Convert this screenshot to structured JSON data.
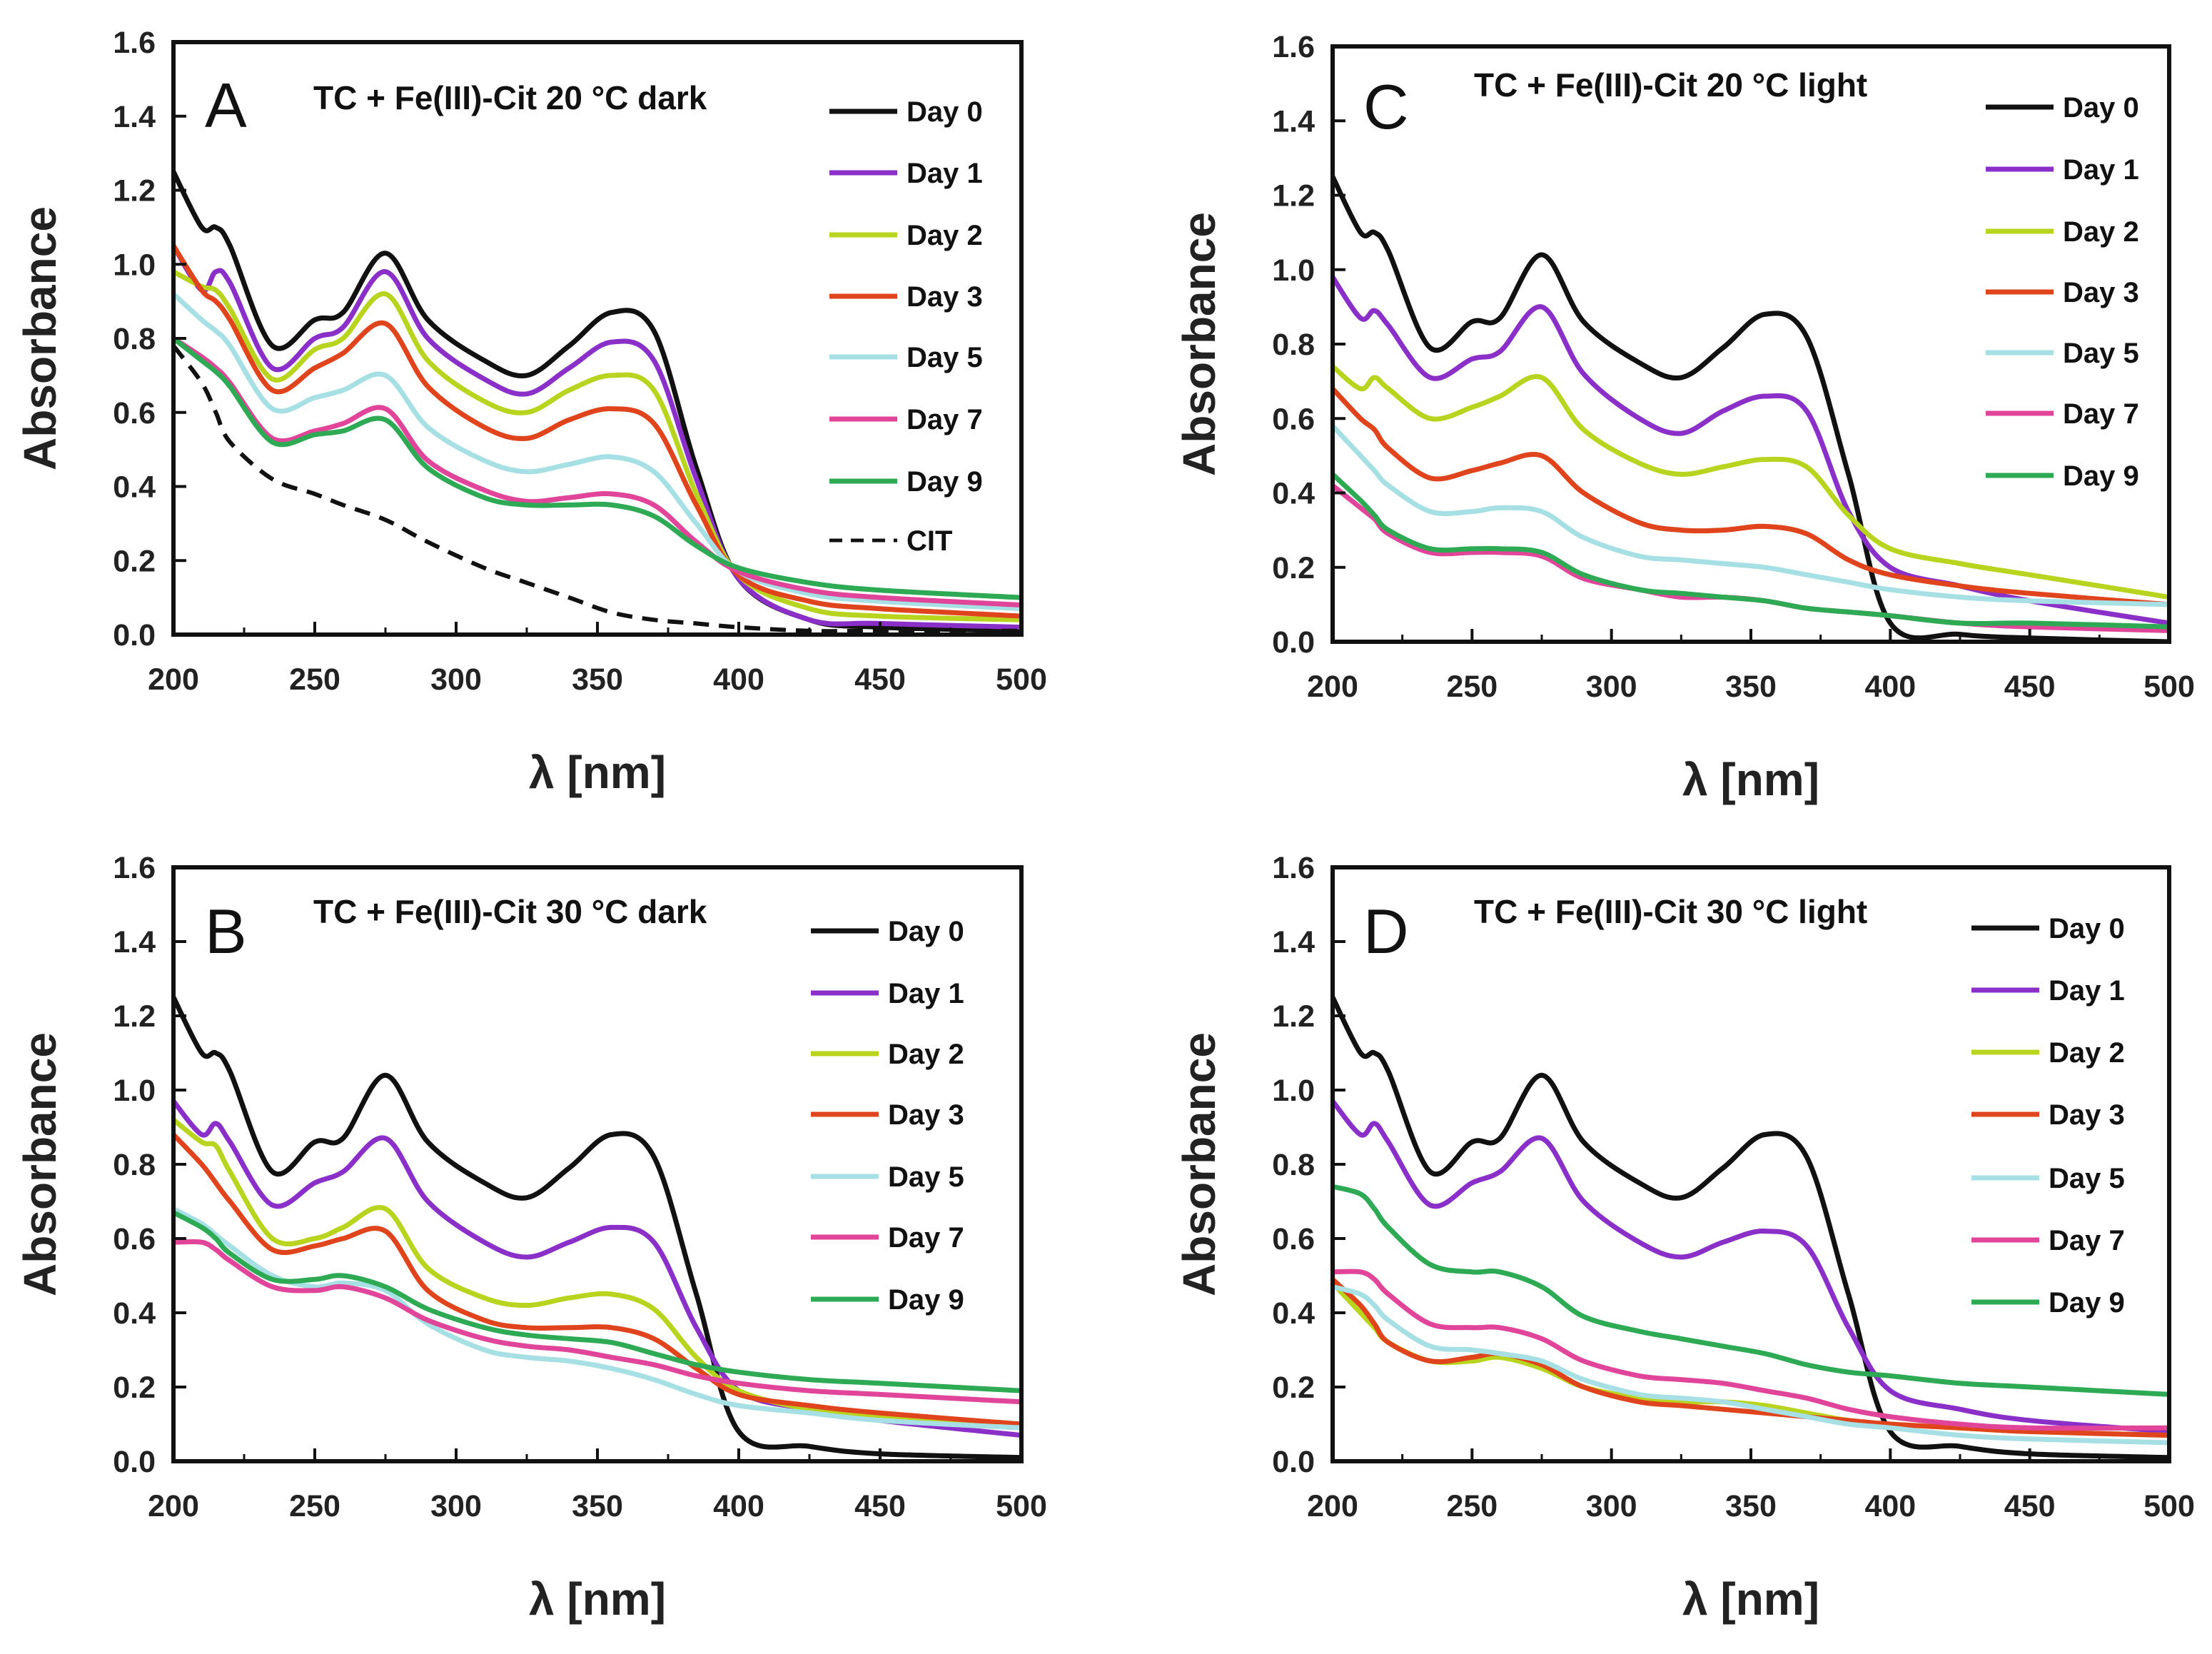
{
  "chart_data": [
    {
      "type": "line",
      "panel_letter": "A",
      "title": "TC + Fe(III)-Cit  20 °C dark",
      "xlabel": "λ [nm]",
      "ylabel": "Absorbance",
      "xlim": [
        200,
        500
      ],
      "ylim": [
        0,
        1.6
      ],
      "xticks": [
        200,
        250,
        300,
        350,
        400,
        450,
        500
      ],
      "yticks": [
        "0.0",
        "0.2",
        "0.4",
        "0.6",
        "0.8",
        "1.0",
        "1.2",
        "1.4",
        "1.6"
      ],
      "legend_position": "top-right",
      "x": [
        200,
        210,
        215,
        220,
        235,
        250,
        260,
        275,
        290,
        310,
        325,
        340,
        355,
        370,
        385,
        400,
        425,
        450,
        500
      ],
      "series": [
        {
          "name": "Day 0",
          "color": "#111111",
          "dash": false,
          "values": [
            1.25,
            1.1,
            1.1,
            1.05,
            0.78,
            0.85,
            0.87,
            1.03,
            0.85,
            0.74,
            0.7,
            0.78,
            0.87,
            0.82,
            0.45,
            0.15,
            0.04,
            0.02,
            0.01
          ]
        },
        {
          "name": "Day 1",
          "color": "#8b2fc9",
          "dash": false,
          "values": [
            1.05,
            0.93,
            0.98,
            0.95,
            0.72,
            0.8,
            0.83,
            0.98,
            0.8,
            0.69,
            0.65,
            0.72,
            0.79,
            0.74,
            0.42,
            0.15,
            0.04,
            0.03,
            0.02
          ]
        },
        {
          "name": "Day 2",
          "color": "#b8d41e",
          "dash": false,
          "values": [
            0.98,
            0.94,
            0.93,
            0.88,
            0.69,
            0.77,
            0.8,
            0.92,
            0.74,
            0.63,
            0.6,
            0.66,
            0.7,
            0.66,
            0.38,
            0.16,
            0.07,
            0.05,
            0.04
          ]
        },
        {
          "name": "Day 3",
          "color": "#e0441c",
          "dash": false,
          "values": [
            1.05,
            0.93,
            0.9,
            0.85,
            0.66,
            0.72,
            0.76,
            0.84,
            0.67,
            0.56,
            0.53,
            0.58,
            0.61,
            0.57,
            0.35,
            0.16,
            0.09,
            0.07,
            0.05
          ]
        },
        {
          "name": "Day 5",
          "color": "#a6e0e4",
          "dash": false,
          "values": [
            0.92,
            0.85,
            0.82,
            0.78,
            0.61,
            0.64,
            0.66,
            0.7,
            0.56,
            0.47,
            0.44,
            0.46,
            0.48,
            0.44,
            0.3,
            0.17,
            0.11,
            0.09,
            0.07
          ]
        },
        {
          "name": "Day 7",
          "color": "#e0459a",
          "dash": false,
          "values": [
            0.8,
            0.75,
            0.72,
            0.68,
            0.53,
            0.55,
            0.57,
            0.61,
            0.47,
            0.39,
            0.36,
            0.37,
            0.38,
            0.35,
            0.25,
            0.17,
            0.12,
            0.1,
            0.08
          ]
        },
        {
          "name": "Day 9",
          "color": "#2eaa55",
          "dash": false,
          "values": [
            0.8,
            0.74,
            0.71,
            0.67,
            0.52,
            0.54,
            0.55,
            0.58,
            0.45,
            0.37,
            0.35,
            0.35,
            0.35,
            0.32,
            0.24,
            0.18,
            0.14,
            0.12,
            0.1
          ]
        },
        {
          "name": "CIT",
          "color": "#111111",
          "dash": true,
          "values": [
            0.78,
            0.68,
            0.6,
            0.52,
            0.42,
            0.38,
            0.35,
            0.31,
            0.25,
            0.18,
            0.14,
            0.1,
            0.06,
            0.04,
            0.03,
            0.02,
            0.01,
            0.01,
            0.01
          ]
        }
      ]
    },
    {
      "type": "line",
      "panel_letter": "C",
      "title": "TC + Fe(III)-Cit  20 °C light",
      "xlabel": "λ [nm]",
      "ylabel": "Absorbance",
      "xlim": [
        200,
        500
      ],
      "ylim": [
        0,
        1.6
      ],
      "xticks": [
        200,
        250,
        300,
        350,
        400,
        450,
        500
      ],
      "yticks": [
        "0.0",
        "0.2",
        "0.4",
        "0.6",
        "0.8",
        "1.0",
        "1.2",
        "1.4",
        "1.6"
      ],
      "legend_position": "top-right",
      "x": [
        200,
        210,
        215,
        220,
        235,
        250,
        260,
        275,
        290,
        310,
        325,
        340,
        355,
        370,
        385,
        400,
        425,
        450,
        500
      ],
      "series": [
        {
          "name": "Day 0",
          "color": "#111111",
          "dash": false,
          "values": [
            1.25,
            1.1,
            1.1,
            1.05,
            0.79,
            0.86,
            0.87,
            1.04,
            0.86,
            0.75,
            0.71,
            0.79,
            0.88,
            0.82,
            0.45,
            0.05,
            0.02,
            0.01,
            0.0
          ]
        },
        {
          "name": "Day 1",
          "color": "#8b2fc9",
          "dash": false,
          "values": [
            0.98,
            0.87,
            0.89,
            0.85,
            0.71,
            0.76,
            0.78,
            0.9,
            0.72,
            0.6,
            0.56,
            0.62,
            0.66,
            0.62,
            0.35,
            0.2,
            0.15,
            0.11,
            0.05
          ]
        },
        {
          "name": "Day 2",
          "color": "#b8d41e",
          "dash": false,
          "values": [
            0.74,
            0.68,
            0.71,
            0.68,
            0.6,
            0.63,
            0.66,
            0.71,
            0.57,
            0.48,
            0.45,
            0.47,
            0.49,
            0.47,
            0.34,
            0.25,
            0.21,
            0.18,
            0.12
          ]
        },
        {
          "name": "Day 3",
          "color": "#e0441c",
          "dash": false,
          "values": [
            0.68,
            0.6,
            0.57,
            0.52,
            0.44,
            0.46,
            0.48,
            0.5,
            0.4,
            0.32,
            0.3,
            0.3,
            0.31,
            0.29,
            0.22,
            0.18,
            0.15,
            0.13,
            0.1
          ]
        },
        {
          "name": "Day 5",
          "color": "#a6e0e4",
          "dash": false,
          "values": [
            0.58,
            0.5,
            0.46,
            0.42,
            0.35,
            0.35,
            0.36,
            0.35,
            0.28,
            0.23,
            0.22,
            0.21,
            0.2,
            0.18,
            0.16,
            0.14,
            0.12,
            0.11,
            0.1
          ]
        },
        {
          "name": "Day 7",
          "color": "#e0459a",
          "dash": false,
          "values": [
            0.42,
            0.36,
            0.33,
            0.29,
            0.24,
            0.24,
            0.24,
            0.23,
            0.17,
            0.14,
            0.12,
            0.12,
            0.11,
            0.09,
            0.08,
            0.07,
            0.05,
            0.04,
            0.03
          ]
        },
        {
          "name": "Day 9",
          "color": "#2eaa55",
          "dash": false,
          "values": [
            0.45,
            0.38,
            0.34,
            0.3,
            0.25,
            0.25,
            0.25,
            0.24,
            0.18,
            0.14,
            0.13,
            0.12,
            0.11,
            0.09,
            0.08,
            0.07,
            0.05,
            0.05,
            0.04
          ]
        }
      ]
    },
    {
      "type": "line",
      "panel_letter": "B",
      "title": "TC + Fe(III)-Cit  30 °C dark",
      "xlabel": "λ [nm]",
      "ylabel": "Absorbance",
      "xlim": [
        200,
        500
      ],
      "ylim": [
        0,
        1.6
      ],
      "xticks": [
        200,
        250,
        300,
        350,
        400,
        450,
        500
      ],
      "yticks": [
        "0.0",
        "0.2",
        "0.4",
        "0.6",
        "0.8",
        "1.0",
        "1.2",
        "1.4",
        "1.6"
      ],
      "legend_position": "top-right",
      "x": [
        200,
        210,
        215,
        220,
        235,
        250,
        260,
        275,
        290,
        310,
        325,
        340,
        355,
        370,
        385,
        400,
        425,
        450,
        500
      ],
      "series": [
        {
          "name": "Day 0",
          "color": "#111111",
          "dash": false,
          "values": [
            1.25,
            1.1,
            1.1,
            1.05,
            0.78,
            0.86,
            0.87,
            1.04,
            0.86,
            0.75,
            0.71,
            0.79,
            0.88,
            0.82,
            0.45,
            0.08,
            0.04,
            0.02,
            0.01
          ]
        },
        {
          "name": "Day 1",
          "color": "#8b2fc9",
          "dash": false,
          "values": [
            0.97,
            0.88,
            0.91,
            0.86,
            0.69,
            0.75,
            0.78,
            0.87,
            0.7,
            0.59,
            0.55,
            0.59,
            0.63,
            0.59,
            0.36,
            0.19,
            0.14,
            0.11,
            0.07
          ]
        },
        {
          "name": "Day 2",
          "color": "#b8d41e",
          "dash": false,
          "values": [
            0.92,
            0.86,
            0.85,
            0.78,
            0.6,
            0.6,
            0.63,
            0.68,
            0.52,
            0.44,
            0.42,
            0.44,
            0.45,
            0.41,
            0.28,
            0.19,
            0.14,
            0.12,
            0.1
          ]
        },
        {
          "name": "Day 3",
          "color": "#e0441c",
          "dash": false,
          "values": [
            0.88,
            0.8,
            0.75,
            0.7,
            0.57,
            0.58,
            0.6,
            0.62,
            0.46,
            0.38,
            0.36,
            0.36,
            0.36,
            0.33,
            0.25,
            0.18,
            0.15,
            0.13,
            0.1
          ]
        },
        {
          "name": "Day 5",
          "color": "#a6e0e4",
          "dash": false,
          "values": [
            0.68,
            0.64,
            0.61,
            0.58,
            0.5,
            0.47,
            0.48,
            0.46,
            0.37,
            0.3,
            0.28,
            0.27,
            0.25,
            0.22,
            0.18,
            0.15,
            0.13,
            0.11,
            0.09
          ]
        },
        {
          "name": "Day 7",
          "color": "#e0459a",
          "dash": false,
          "values": [
            0.59,
            0.59,
            0.57,
            0.54,
            0.47,
            0.46,
            0.47,
            0.44,
            0.38,
            0.33,
            0.31,
            0.3,
            0.28,
            0.26,
            0.23,
            0.21,
            0.19,
            0.18,
            0.16
          ]
        },
        {
          "name": "Day 9",
          "color": "#2eaa55",
          "dash": false,
          "values": [
            0.67,
            0.63,
            0.6,
            0.56,
            0.49,
            0.49,
            0.5,
            0.47,
            0.41,
            0.36,
            0.34,
            0.33,
            0.32,
            0.29,
            0.26,
            0.24,
            0.22,
            0.21,
            0.19
          ]
        }
      ]
    },
    {
      "type": "line",
      "panel_letter": "D",
      "title": "TC + Fe(III)-Cit  30 °C light",
      "xlabel": "λ [nm]",
      "ylabel": "Absorbance",
      "xlim": [
        200,
        500
      ],
      "ylim": [
        0,
        1.6
      ],
      "xticks": [
        200,
        250,
        300,
        350,
        400,
        450,
        500
      ],
      "yticks": [
        "0.0",
        "0.2",
        "0.4",
        "0.6",
        "0.8",
        "1.0",
        "1.2",
        "1.4",
        "1.6"
      ],
      "legend_position": "top-right",
      "x": [
        200,
        210,
        215,
        220,
        235,
        250,
        260,
        275,
        290,
        310,
        325,
        340,
        355,
        370,
        385,
        400,
        425,
        450,
        500
      ],
      "series": [
        {
          "name": "Day 0",
          "color": "#111111",
          "dash": false,
          "values": [
            1.25,
            1.1,
            1.1,
            1.05,
            0.78,
            0.86,
            0.87,
            1.04,
            0.86,
            0.75,
            0.71,
            0.79,
            0.88,
            0.82,
            0.45,
            0.08,
            0.04,
            0.02,
            0.01
          ]
        },
        {
          "name": "Day 1",
          "color": "#8b2fc9",
          "dash": false,
          "values": [
            0.97,
            0.88,
            0.91,
            0.86,
            0.69,
            0.75,
            0.78,
            0.87,
            0.7,
            0.59,
            0.55,
            0.59,
            0.62,
            0.58,
            0.36,
            0.19,
            0.14,
            0.11,
            0.08
          ]
        },
        {
          "name": "Day 2",
          "color": "#b8d41e",
          "dash": false,
          "values": [
            0.48,
            0.4,
            0.36,
            0.32,
            0.27,
            0.27,
            0.28,
            0.25,
            0.2,
            0.17,
            0.16,
            0.16,
            0.15,
            0.13,
            0.11,
            0.1,
            0.09,
            0.08,
            0.07
          ]
        },
        {
          "name": "Day 3",
          "color": "#e0441c",
          "dash": false,
          "values": [
            0.49,
            0.42,
            0.37,
            0.32,
            0.27,
            0.28,
            0.29,
            0.26,
            0.2,
            0.16,
            0.15,
            0.14,
            0.13,
            0.12,
            0.11,
            0.1,
            0.09,
            0.08,
            0.07
          ]
        },
        {
          "name": "Day 5",
          "color": "#a6e0e4",
          "dash": false,
          "values": [
            0.47,
            0.45,
            0.42,
            0.38,
            0.31,
            0.3,
            0.29,
            0.27,
            0.22,
            0.18,
            0.17,
            0.16,
            0.14,
            0.12,
            0.1,
            0.09,
            0.07,
            0.06,
            0.05
          ]
        },
        {
          "name": "Day 7",
          "color": "#e0459a",
          "dash": false,
          "values": [
            0.51,
            0.51,
            0.49,
            0.45,
            0.37,
            0.36,
            0.36,
            0.33,
            0.27,
            0.23,
            0.22,
            0.21,
            0.19,
            0.17,
            0.14,
            0.12,
            0.1,
            0.09,
            0.09
          ]
        },
        {
          "name": "Day 9",
          "color": "#2eaa55",
          "dash": false,
          "values": [
            0.74,
            0.72,
            0.68,
            0.63,
            0.53,
            0.51,
            0.51,
            0.47,
            0.39,
            0.35,
            0.33,
            0.31,
            0.29,
            0.26,
            0.24,
            0.23,
            0.21,
            0.2,
            0.18
          ]
        }
      ]
    }
  ]
}
